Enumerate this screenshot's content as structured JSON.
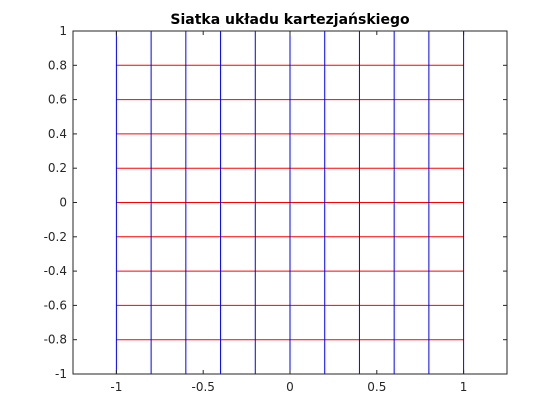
{
  "chart_data": {
    "type": "line",
    "title": "Siatka układu kartezjańskiego",
    "xlabel": "",
    "ylabel": "",
    "xlim": [
      -1.25,
      1.25
    ],
    "ylim": [
      -1,
      1
    ],
    "x_ticks": [
      -1,
      -0.5,
      0,
      0.5,
      1
    ],
    "x_tick_labels": [
      "-1",
      "-0.5",
      "0",
      "0.5",
      "1"
    ],
    "y_ticks": [
      -1,
      -0.8,
      -0.6,
      -0.4,
      -0.2,
      0,
      0.2,
      0.4,
      0.6,
      0.8,
      1
    ],
    "y_tick_labels": [
      "-1",
      "-0.8",
      "-0.6",
      "-0.4",
      "-0.2",
      "0",
      "0.2",
      "0.4",
      "0.6",
      "0.8",
      "1"
    ],
    "grid": false,
    "series": [
      {
        "color": "#0000ff",
        "orientation": "vertical",
        "x_values": [
          -1,
          -0.8,
          -0.6,
          -0.4,
          -0.2,
          0,
          0.2,
          0.4,
          0.6,
          0.8,
          1
        ],
        "y_range": [
          -1,
          1
        ]
      },
      {
        "color": "#ff0000",
        "orientation": "horizontal",
        "y_values": [
          -1,
          -0.8,
          -0.6,
          -0.4,
          -0.2,
          0,
          0.2,
          0.4,
          0.6,
          0.8,
          1
        ],
        "x_range": [
          -1,
          1
        ]
      }
    ],
    "axis_color": "#262626"
  }
}
